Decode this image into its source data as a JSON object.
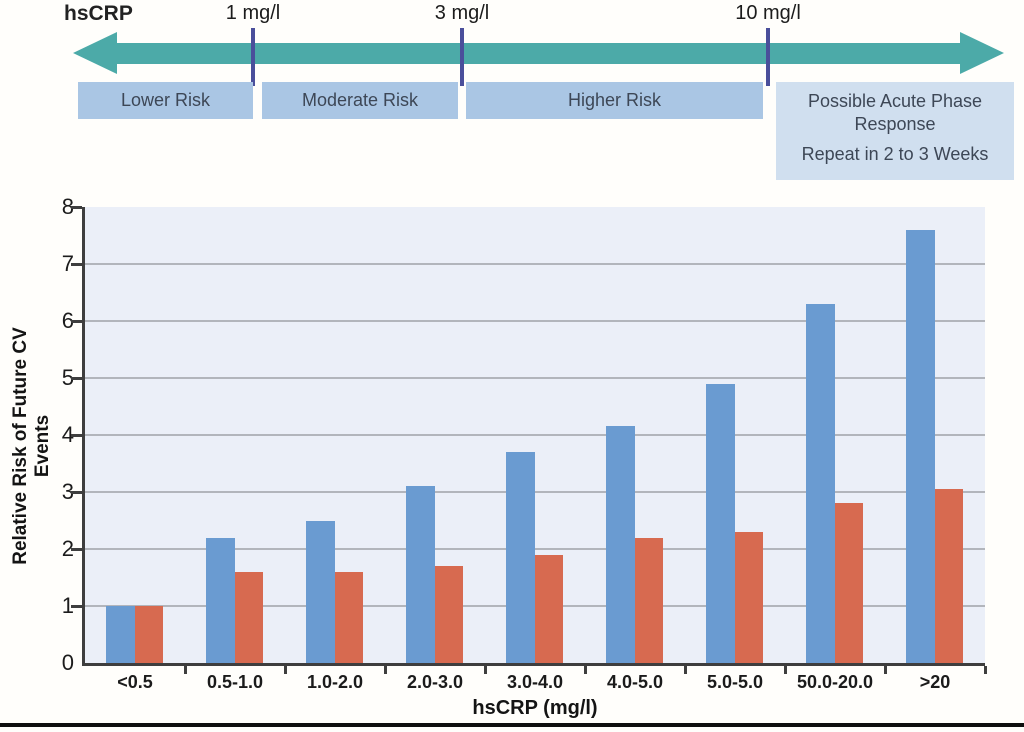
{
  "scale": {
    "label": "hsCRP",
    "thresholds": [
      {
        "label": "1 mg/l"
      },
      {
        "label": "3 mg/l"
      },
      {
        "label": "10 mg/l"
      }
    ],
    "bands": [
      {
        "label": "Lower Risk"
      },
      {
        "label": "Moderate Risk"
      },
      {
        "label": "Higher Risk"
      }
    ],
    "acute_box": {
      "line1": "Possible Acute Phase Response",
      "line2": "Repeat in 2 to 3 Weeks"
    },
    "colors": {
      "arrow": "#4caaa8",
      "threshold_tick": "#4a4f9b",
      "band_fill": "#aac6e4",
      "acute_fill": "#d0dfef"
    }
  },
  "chart_data": {
    "type": "bar",
    "title": "",
    "xlabel": "hsCRP (mg/l)",
    "ylabel": "Relative Risk of Future CV Events",
    "categories": [
      "<0.5",
      "0.5-1.0",
      "1.0-2.0",
      "2.0-3.0",
      "3.0-4.0",
      "4.0-5.0",
      "5.0-5.0",
      "50.0-20.0",
      ">20"
    ],
    "series": [
      {
        "name": "blue-series",
        "color": "#6a9bd1",
        "values": [
          1.0,
          2.2,
          2.5,
          3.1,
          3.7,
          4.15,
          4.9,
          6.3,
          7.6
        ]
      },
      {
        "name": "red-series",
        "color": "#d76a50",
        "values": [
          1.0,
          1.6,
          1.6,
          1.7,
          1.9,
          2.2,
          2.3,
          2.8,
          3.05
        ]
      }
    ],
    "ylim": [
      0,
      8
    ],
    "yticks": [
      0,
      1,
      2,
      3,
      4,
      5,
      6,
      7,
      8
    ],
    "grid": true,
    "legend": "none",
    "plot_bg": "#ebeff8",
    "gridline_color": "#b2b5bc"
  }
}
